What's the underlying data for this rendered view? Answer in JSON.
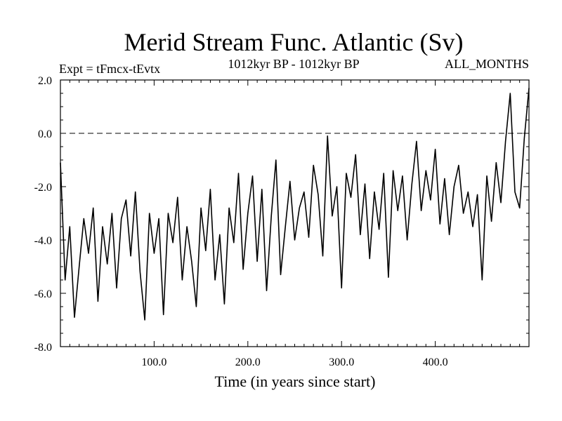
{
  "chart_data": {
    "type": "line",
    "title": "Merid Stream Func. Atlantic (Sv)",
    "subtitle": "1012kyr BP - 1012kyr BP",
    "annotation_left": "Expt = tFmcx-tEvtx",
    "annotation_right": "ALL_MONTHS",
    "xlabel": "Time (in years since start)",
    "ylabel": "",
    "xlim": [
      0,
      500
    ],
    "ylim": [
      -8,
      2
    ],
    "xticks": [
      100,
      200,
      300,
      400
    ],
    "xtick_labels": [
      "100.0",
      "200.0",
      "300.0",
      "400.0"
    ],
    "yticks": [
      2,
      0,
      -2,
      -4,
      -6,
      -8
    ],
    "ytick_labels": [
      "2.0",
      "0.0",
      "-2.0",
      "-4.0",
      "-6.0",
      "-8.0"
    ],
    "reference_line": {
      "y": 0,
      "style": "dashed"
    },
    "series": [
      {
        "name": "Merid Stream Func. Atlantic",
        "x": [
          0,
          5,
          10,
          15,
          20,
          25,
          30,
          35,
          40,
          45,
          50,
          55,
          60,
          65,
          70,
          75,
          80,
          85,
          90,
          95,
          100,
          105,
          110,
          115,
          120,
          125,
          130,
          135,
          140,
          145,
          150,
          155,
          160,
          165,
          170,
          175,
          180,
          185,
          190,
          195,
          200,
          205,
          210,
          215,
          220,
          225,
          230,
          235,
          240,
          245,
          250,
          255,
          260,
          265,
          270,
          275,
          280,
          285,
          290,
          295,
          300,
          305,
          310,
          315,
          320,
          325,
          330,
          335,
          340,
          345,
          350,
          355,
          360,
          365,
          370,
          375,
          380,
          385,
          390,
          395,
          400,
          405,
          410,
          415,
          420,
          425,
          430,
          435,
          440,
          445,
          450,
          455,
          460,
          465,
          470,
          475,
          480,
          485,
          490,
          495,
          500
        ],
        "values": [
          -1.1,
          -5.5,
          -3.5,
          -6.9,
          -5.0,
          -3.2,
          -4.5,
          -2.8,
          -6.3,
          -3.5,
          -4.9,
          -3.0,
          -5.8,
          -3.2,
          -2.5,
          -4.6,
          -2.2,
          -5.2,
          -7.0,
          -3.0,
          -4.5,
          -3.2,
          -6.8,
          -3.0,
          -4.1,
          -2.4,
          -5.5,
          -3.5,
          -4.8,
          -6.5,
          -2.8,
          -4.4,
          -2.1,
          -5.5,
          -3.8,
          -6.4,
          -2.8,
          -4.1,
          -1.5,
          -5.1,
          -3.0,
          -1.6,
          -4.8,
          -2.1,
          -5.9,
          -3.1,
          -1.0,
          -5.3,
          -3.5,
          -1.8,
          -4.0,
          -2.8,
          -2.2,
          -3.9,
          -1.2,
          -2.3,
          -4.6,
          -0.1,
          -3.1,
          -2.0,
          -5.8,
          -1.5,
          -2.4,
          -0.8,
          -3.8,
          -1.9,
          -4.7,
          -2.2,
          -3.6,
          -1.5,
          -5.4,
          -1.4,
          -2.9,
          -1.6,
          -4.0,
          -1.9,
          -0.3,
          -2.9,
          -1.4,
          -2.5,
          -0.6,
          -3.4,
          -1.7,
          -3.8,
          -2.0,
          -1.2,
          -3.0,
          -2.2,
          -3.5,
          -2.3,
          -5.5,
          -1.6,
          -3.3,
          -1.1,
          -2.6,
          -0.3,
          1.5,
          -2.2,
          -2.8,
          -0.2,
          1.7
        ]
      }
    ]
  }
}
